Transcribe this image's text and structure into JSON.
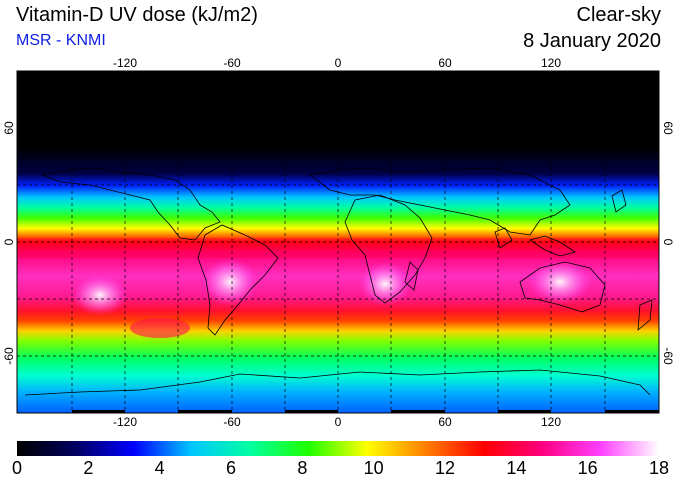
{
  "header": {
    "title": "Vitamin-D UV dose (kJ/m2)",
    "source": "MSR - KNMI",
    "mode": "Clear-sky",
    "date": "8 January 2020"
  },
  "map": {
    "projection": "equirectangular",
    "lon_range": [
      -180,
      180
    ],
    "lat_range": [
      -90,
      90
    ],
    "lon_ticks": [
      "-120",
      "-60",
      "0",
      "60",
      "120"
    ],
    "lat_ticks": [
      "60",
      "0",
      "-60"
    ],
    "grid": "dashed every 30 degrees"
  },
  "colorbar": {
    "min": 0,
    "max": 18,
    "labels": [
      "0",
      "2",
      "4",
      "6",
      "8",
      "10",
      "12",
      "14",
      "16",
      "18"
    ],
    "colors": [
      "#000000",
      "#000060",
      "#0000ff",
      "#00c8ff",
      "#00ffa0",
      "#20ff00",
      "#ffff00",
      "#ff8000",
      "#ff0000",
      "#ff0080",
      "#ff40ff",
      "#ffffff"
    ]
  }
}
